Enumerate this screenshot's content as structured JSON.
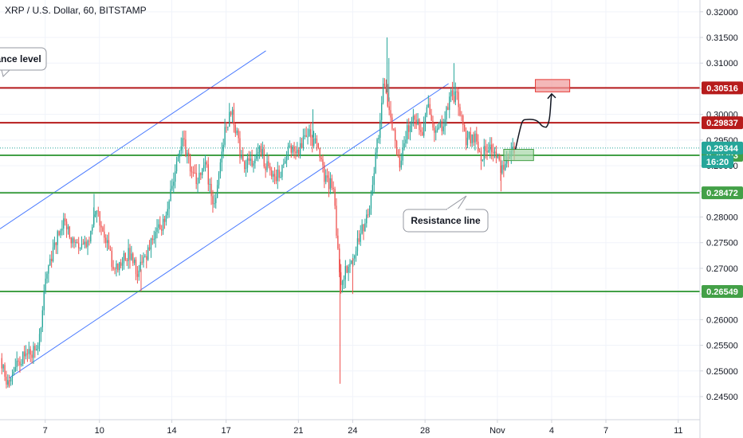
{
  "chart_data": {
    "type": "candlestick",
    "title": "XRP / U.S. Dollar, 60, BITSTAMP",
    "x_ticks": [
      {
        "day": 7,
        "label": "7"
      },
      {
        "day": 10,
        "label": "10"
      },
      {
        "day": 14,
        "label": "14"
      },
      {
        "day": 17,
        "label": "17"
      },
      {
        "day": 21,
        "label": "21"
      },
      {
        "day": 24,
        "label": "24"
      },
      {
        "day": 28,
        "label": "28"
      },
      {
        "day": 32,
        "label": "Nov"
      },
      {
        "day": 35,
        "label": "4"
      },
      {
        "day": 38,
        "label": "7"
      },
      {
        "day": 42,
        "label": "11"
      }
    ],
    "xlim": [
      4.5,
      43.2
    ],
    "ylim": [
      0.2405,
      0.3223
    ],
    "y_ticks": [
      "0.24500",
      "0.25000",
      "0.25500",
      "0.26000",
      "0.26500",
      "0.27000",
      "0.27500",
      "0.28000",
      "0.28500",
      "0.29000",
      "0.29500",
      "0.30000",
      "0.30500",
      "0.31000",
      "0.31500",
      "0.32000"
    ],
    "horizontal_levels": [
      {
        "price": 0.30516,
        "label": "0.30516",
        "color": "#b71c1c"
      },
      {
        "price": 0.29837,
        "label": "0.29837",
        "color": "#b71c1c"
      },
      {
        "price": 0.29203,
        "label": "0.29203",
        "color": "#43a047"
      },
      {
        "price": 0.28472,
        "label": "0.28472",
        "color": "#43a047"
      },
      {
        "price": 0.26549,
        "label": "0.26549",
        "color": "#43a047"
      }
    ],
    "current_price": {
      "price": 0.29344,
      "label": "0.29344",
      "countdown": "16:20",
      "color": "#26a69a"
    },
    "channel_lines": [
      {
        "from": [
          4.5,
          0.2777
        ],
        "to": [
          19.2,
          0.3124
        ]
      },
      {
        "from": [
          5.0,
          0.2486
        ],
        "to": [
          29.3,
          0.306
        ]
      }
    ],
    "callouts": [
      {
        "text": "ance level",
        "anchor": "top-left"
      },
      {
        "text": "Resistance line",
        "anchor": "bottom-center"
      }
    ],
    "target_boxes": [
      {
        "day_start": 34.1,
        "day_end": 36.0,
        "price_low": 0.3044,
        "price_high": 0.3068,
        "color": "#ef9a9a"
      },
      {
        "day_start": 32.35,
        "day_end": 34.0,
        "price_low": 0.291,
        "price_high": 0.2932,
        "color": "#a5d6a7"
      }
    ],
    "candle_series": {
      "keypoints": [
        [
          4.6,
          0.2525
        ],
        [
          5.0,
          0.248
        ],
        [
          5.5,
          0.252
        ],
        [
          6.4,
          0.254
        ],
        [
          6.8,
          0.256
        ],
        [
          7.1,
          0.268
        ],
        [
          7.6,
          0.275
        ],
        [
          8.1,
          0.279
        ],
        [
          8.5,
          0.276
        ],
        [
          9.0,
          0.273
        ],
        [
          9.5,
          0.276
        ],
        [
          9.9,
          0.281
        ],
        [
          10.4,
          0.276
        ],
        [
          10.9,
          0.27
        ],
        [
          11.7,
          0.273
        ],
        [
          12.2,
          0.269
        ],
        [
          12.7,
          0.273
        ],
        [
          13.3,
          0.277
        ],
        [
          13.8,
          0.281
        ],
        [
          14.2,
          0.288
        ],
        [
          14.7,
          0.295
        ],
        [
          15.1,
          0.29
        ],
        [
          15.5,
          0.287
        ],
        [
          15.9,
          0.291
        ],
        [
          16.4,
          0.282
        ],
        [
          17.0,
          0.296
        ],
        [
          17.4,
          0.301
        ],
        [
          18.0,
          0.29
        ],
        [
          18.5,
          0.291
        ],
        [
          19.0,
          0.293
        ],
        [
          19.6,
          0.287
        ],
        [
          20.1,
          0.289
        ],
        [
          20.6,
          0.294
        ],
        [
          21.0,
          0.292
        ],
        [
          21.5,
          0.297
        ],
        [
          22.1,
          0.294
        ],
        [
          22.6,
          0.287
        ],
        [
          23.0,
          0.286
        ],
        [
          23.4,
          0.267
        ],
        [
          23.8,
          0.27
        ],
        [
          24.4,
          0.276
        ],
        [
          25.0,
          0.281
        ],
        [
          25.2,
          0.287
        ],
        [
          25.5,
          0.296
        ],
        [
          25.8,
          0.306
        ],
        [
          26.2,
          0.299
        ],
        [
          26.7,
          0.29
        ],
        [
          27.1,
          0.297
        ],
        [
          27.5,
          0.3
        ],
        [
          27.9,
          0.296
        ],
        [
          28.3,
          0.302
        ],
        [
          28.7,
          0.296
        ],
        [
          29.2,
          0.299
        ],
        [
          29.5,
          0.304
        ],
        [
          29.9,
          0.303
        ],
        [
          30.3,
          0.295
        ],
        [
          30.8,
          0.296
        ],
        [
          31.2,
          0.292
        ],
        [
          31.6,
          0.294
        ],
        [
          32.0,
          0.292
        ],
        [
          32.3,
          0.289
        ],
        [
          32.6,
          0.2925
        ],
        [
          33.0,
          0.2938
        ]
      ],
      "spikes": [
        [
          5.0,
          0.247
        ],
        [
          23.3,
          0.2475
        ],
        [
          25.9,
          0.315
        ],
        [
          29.6,
          0.31
        ],
        [
          32.2,
          0.285
        ],
        [
          24.0,
          0.265
        ],
        [
          9.7,
          0.2845
        ],
        [
          12.3,
          0.2655
        ],
        [
          21.8,
          0.301
        ],
        [
          26.0,
          0.311
        ]
      ]
    }
  }
}
